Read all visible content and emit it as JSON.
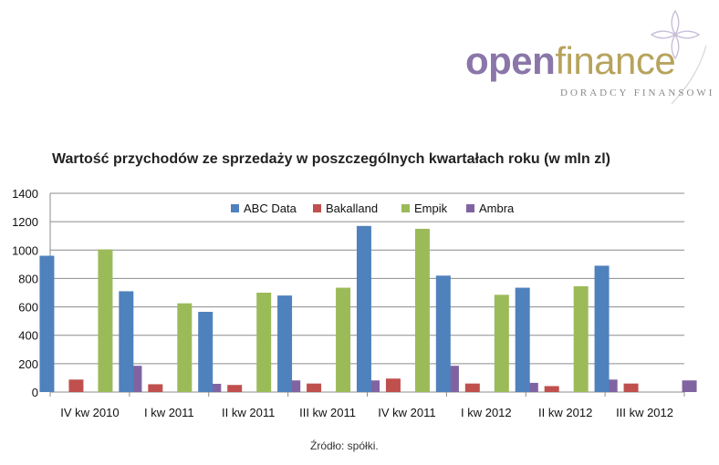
{
  "brand": {
    "name_part1": "open",
    "name_part2": "finance",
    "tagline": "DORADCY FINANSOWI"
  },
  "chart_title": "Wartość przychodów ze sprzedaży w poszczególnych kwartałach roku (w mln zl)",
  "source": "Źródło: spółki.",
  "colors": {
    "ABC Data": "#4f81bd",
    "Bakalland": "#c0504d",
    "Empik": "#9bbb59",
    "Ambra": "#8064a2",
    "grid": "#8c8c8c",
    "brand_purple": "#8a76a8",
    "brand_gold": "#b7a35c"
  },
  "chart_data": {
    "type": "bar",
    "categories": [
      "IV kw 2010",
      "I kw 2011",
      "II kw 2011",
      "III kw 2011",
      "IV kw 2011",
      "I kw 2012",
      "II kw 2012",
      "III kw 2012"
    ],
    "series": [
      {
        "name": "ABC Data",
        "values": [
          960,
          710,
          565,
          680,
          1170,
          820,
          735,
          890
        ]
      },
      {
        "name": "Bakalland",
        "values": [
          88,
          55,
          50,
          60,
          95,
          60,
          42,
          60
        ]
      },
      {
        "name": "Empik",
        "values": [
          1005,
          625,
          700,
          735,
          1150,
          685,
          745,
          null
        ]
      },
      {
        "name": "Ambra",
        "values": [
          185,
          58,
          82,
          82,
          185,
          65,
          88,
          82
        ]
      }
    ],
    "ylim": [
      0,
      1400
    ],
    "yticks": [
      0,
      200,
      400,
      600,
      800,
      1000,
      1200,
      1400
    ],
    "grid": true,
    "legend_position": "top"
  }
}
